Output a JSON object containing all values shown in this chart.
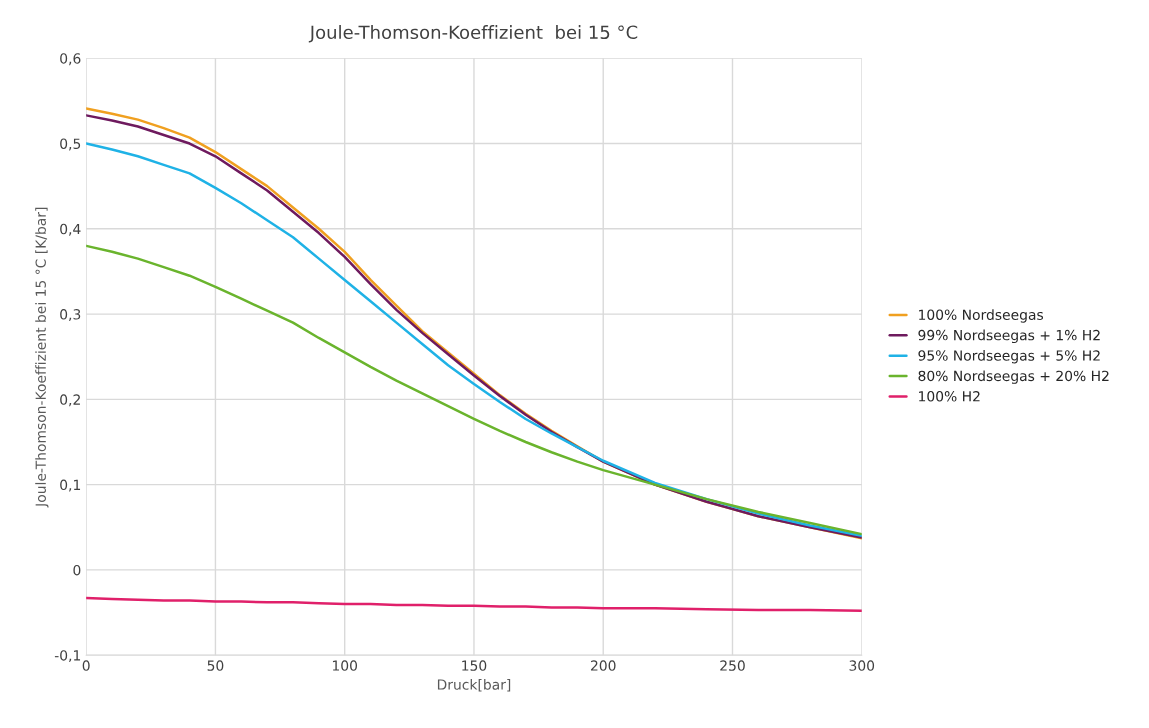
{
  "chart_data": {
    "type": "line",
    "title": "Joule-Thomson-Koeffizient  bei 15 °C",
    "xlabel": "Druck[bar]",
    "ylabel": "Joule-Thomson-Koeffizient bei 15 °C [K/bar]",
    "x": [
      0,
      10,
      20,
      30,
      40,
      50,
      60,
      70,
      80,
      90,
      100,
      110,
      120,
      130,
      140,
      150,
      160,
      170,
      180,
      190,
      200,
      220,
      240,
      260,
      280,
      300
    ],
    "series": [
      {
        "name": "100% Nordseegas",
        "color": "#f0a020",
        "values": [
          0.541,
          0.535,
          0.528,
          0.518,
          0.507,
          0.49,
          0.47,
          0.45,
          0.425,
          0.4,
          0.373,
          0.34,
          0.31,
          0.28,
          0.255,
          0.23,
          0.205,
          0.183,
          0.163,
          0.145,
          0.127,
          0.1,
          0.08,
          0.063,
          0.05,
          0.037
        ]
      },
      {
        "name": "99% Nordseegas + 1% H2",
        "color": "#6e1a5e",
        "values": [
          0.533,
          0.527,
          0.52,
          0.51,
          0.5,
          0.485,
          0.465,
          0.445,
          0.42,
          0.395,
          0.367,
          0.335,
          0.305,
          0.278,
          0.253,
          0.228,
          0.204,
          0.182,
          0.162,
          0.144,
          0.127,
          0.1,
          0.08,
          0.063,
          0.05,
          0.038
        ]
      },
      {
        "name": "95% Nordseegas + 5% H2",
        "color": "#1fb2e6",
        "values": [
          0.5,
          0.493,
          0.485,
          0.475,
          0.465,
          0.448,
          0.43,
          0.41,
          0.39,
          0.365,
          0.34,
          0.315,
          0.29,
          0.265,
          0.24,
          0.218,
          0.197,
          0.177,
          0.16,
          0.144,
          0.128,
          0.102,
          0.083,
          0.066,
          0.052,
          0.04
        ]
      },
      {
        "name": "80% Nordseegas + 20% H2",
        "color": "#6ab42d",
        "values": [
          0.38,
          0.373,
          0.365,
          0.355,
          0.345,
          0.332,
          0.318,
          0.304,
          0.29,
          0.272,
          0.255,
          0.238,
          0.222,
          0.207,
          0.192,
          0.177,
          0.163,
          0.15,
          0.138,
          0.127,
          0.117,
          0.1,
          0.083,
          0.068,
          0.055,
          0.042
        ]
      },
      {
        "name": "100% H2",
        "color": "#e0206a",
        "values": [
          -0.033,
          -0.034,
          -0.035,
          -0.036,
          -0.036,
          -0.037,
          -0.037,
          -0.038,
          -0.038,
          -0.039,
          -0.04,
          -0.04,
          -0.041,
          -0.041,
          -0.042,
          -0.042,
          -0.043,
          -0.043,
          -0.044,
          -0.044,
          -0.045,
          -0.045,
          -0.046,
          -0.047,
          -0.047,
          -0.048
        ]
      }
    ],
    "xlim": [
      0,
      300
    ],
    "xticks": [
      0,
      50,
      100,
      150,
      200,
      250,
      300
    ],
    "ylim": [
      -0.1,
      0.6
    ],
    "yticks": [
      {
        "value": -0.1,
        "label": "-0,1"
      },
      0,
      {
        "value": 0.1,
        "label": "0,1"
      },
      {
        "value": 0.2,
        "label": "0,2"
      },
      {
        "value": 0.3,
        "label": "0,3"
      },
      {
        "value": 0.4,
        "label": "0,4"
      },
      {
        "value": 0.5,
        "label": "0,5"
      },
      {
        "value": 0.6,
        "label": "0,6"
      }
    ],
    "grid": true,
    "legend": "right",
    "marker": "none",
    "line_style": "solid"
  }
}
